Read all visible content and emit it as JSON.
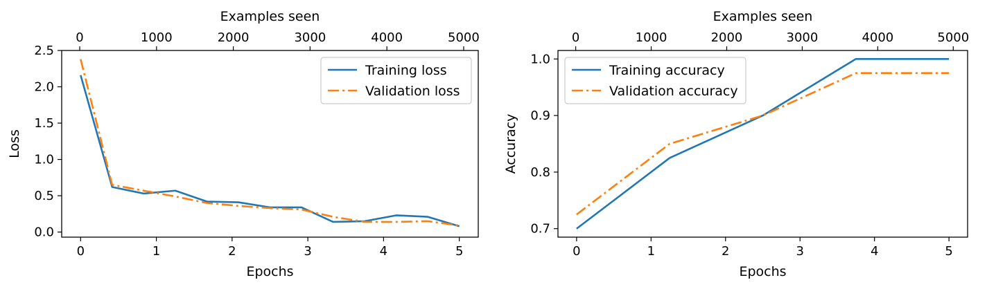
{
  "chart_data": [
    {
      "type": "line",
      "xlabel": "Epochs",
      "ylabel": "Loss",
      "top_xlabel": "Examples seen",
      "xlim": [
        -0.25,
        5.25
      ],
      "ylim": [
        -0.07,
        2.5
      ],
      "xticks": [
        0,
        1,
        2,
        3,
        4,
        5
      ],
      "xtick_labels": [
        "0",
        "1",
        "2",
        "3",
        "4",
        "5"
      ],
      "yticks": [
        0,
        0.5,
        1,
        1.5,
        2,
        2.5
      ],
      "ytick_labels": [
        "0.0",
        "0.5",
        "1.0",
        "1.5",
        "2.0",
        "2.5"
      ],
      "top_xlim": [
        -235,
        5190
      ],
      "top_xticks": [
        0,
        1000,
        2000,
        3000,
        4000,
        5000
      ],
      "top_xtick_labels": [
        "0",
        "1000",
        "2000",
        "3000",
        "4000",
        "5000"
      ],
      "legend_position": "upper right",
      "series": [
        {
          "name": "Training loss",
          "color": "#1f77b4",
          "style": "solid",
          "x": [
            0,
            0.4167,
            0.8333,
            1.25,
            1.6667,
            2.0833,
            2.5,
            2.9167,
            3.3333,
            3.75,
            4.1667,
            4.5833,
            5
          ],
          "y": [
            2.16,
            0.62,
            0.53,
            0.57,
            0.42,
            0.41,
            0.34,
            0.34,
            0.14,
            0.15,
            0.23,
            0.21,
            0.08
          ]
        },
        {
          "name": "Validation loss",
          "color": "#ff7f0e",
          "style": "dashdot",
          "x": [
            0,
            0.4167,
            0.8333,
            1.25,
            1.6667,
            2.0833,
            2.5,
            2.9167,
            3.3333,
            3.75,
            4.1667,
            4.5833,
            5
          ],
          "y": [
            2.38,
            0.65,
            0.57,
            0.49,
            0.4,
            0.36,
            0.33,
            0.31,
            0.21,
            0.14,
            0.14,
            0.15,
            0.09
          ]
        }
      ]
    },
    {
      "type": "line",
      "xlabel": "Epochs",
      "ylabel": "Accuracy",
      "top_xlabel": "Examples seen",
      "xlim": [
        -0.25,
        5.25
      ],
      "ylim": [
        0.685,
        1.015
      ],
      "xticks": [
        0,
        1,
        2,
        3,
        4,
        5
      ],
      "xtick_labels": [
        "0",
        "1",
        "2",
        "3",
        "4",
        "5"
      ],
      "yticks": [
        0.7,
        0.8,
        0.9,
        1.0
      ],
      "ytick_labels": [
        "0.7",
        "0.8",
        "0.9",
        "1.0"
      ],
      "top_xlim": [
        -235,
        5190
      ],
      "top_xticks": [
        0,
        1000,
        2000,
        3000,
        4000,
        5000
      ],
      "top_xtick_labels": [
        "0",
        "1000",
        "2000",
        "3000",
        "4000",
        "5000"
      ],
      "legend_position": "upper left",
      "series": [
        {
          "name": "Training accuracy",
          "color": "#1f77b4",
          "style": "solid",
          "x": [
            0,
            1.25,
            2.5,
            3.75,
            5
          ],
          "y": [
            0.7,
            0.825,
            0.9,
            1.0,
            1.0
          ]
        },
        {
          "name": "Validation accuracy",
          "color": "#ff7f0e",
          "style": "dashdot",
          "x": [
            0,
            1.25,
            2.5,
            3.75,
            5
          ],
          "y": [
            0.725,
            0.85,
            0.9,
            0.975,
            0.975
          ]
        }
      ]
    }
  ]
}
